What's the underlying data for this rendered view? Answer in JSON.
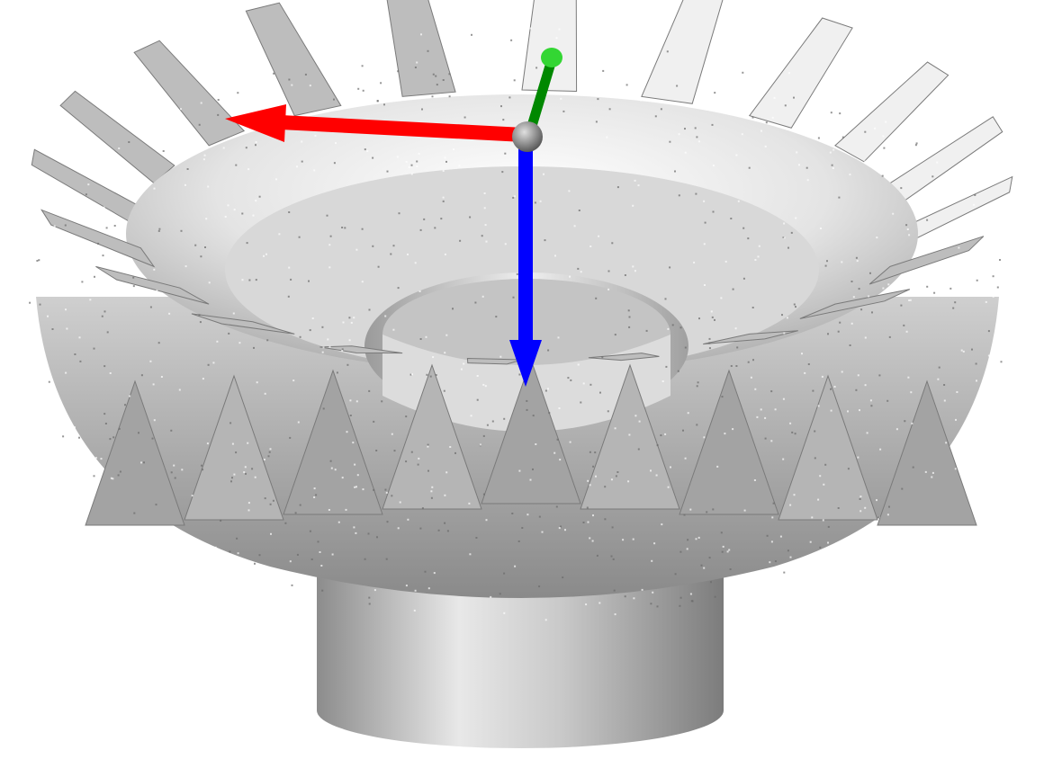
{
  "scene": {
    "background_color": "#ffffff",
    "subject": "bevel-gear-point-cloud",
    "tooth_count_top": 20,
    "colors": {
      "surface_light": "#f0f0f0",
      "surface_mid": "#bdbdbd",
      "surface_dark": "#7a7a7a",
      "speckle": "#ffffff"
    }
  },
  "axes": {
    "x_axis": {
      "color": "#ff0000",
      "icon": "arrow-icon"
    },
    "y_axis": {
      "color": "#008800",
      "icon": "arrow-icon"
    },
    "z_axis": {
      "color": "#0000ff",
      "icon": "arrow-icon"
    },
    "origin": {
      "color": "#8a8a8a",
      "icon": "sphere-icon"
    }
  }
}
